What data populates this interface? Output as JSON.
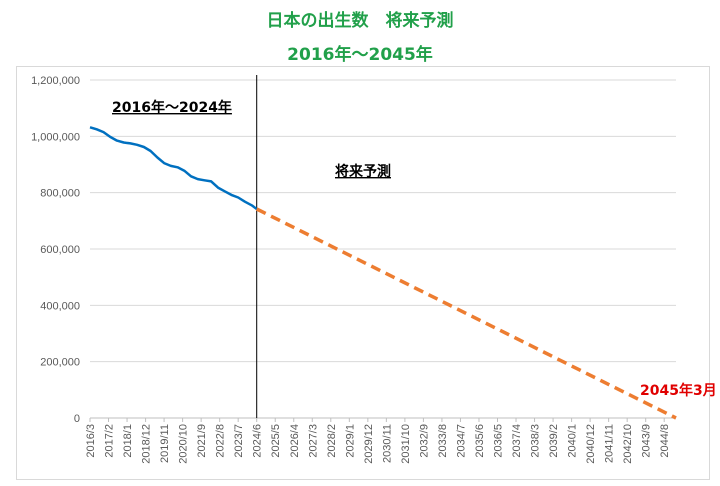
{
  "title": "日本の出生数　将来予測",
  "subtitle": "2016年～2045年",
  "annotations": {
    "actual_period": "2016年～2024年",
    "forecast_label": "将来予測",
    "end_label": "2045年3月"
  },
  "colors": {
    "title": "#21a04a",
    "actual": "#0070c0",
    "forecast": "#ed7d31",
    "end_label": "#e00000",
    "grid": "#d9d9d9"
  },
  "chart_data": {
    "type": "line",
    "title": "日本の出生数　将来予測",
    "subtitle": "2016年～2045年",
    "x_range": [
      "2016-03",
      "2045-03"
    ],
    "ylim": [
      0,
      1200000
    ],
    "y_ticks": [
      0,
      200000,
      400000,
      600000,
      800000,
      1000000,
      1200000
    ],
    "y_tick_labels": [
      "0",
      "200,000",
      "400,000",
      "600,000",
      "800,000",
      "1,000,000",
      "1,200,000"
    ],
    "x_tick_labels": [
      "2016/3",
      "2017/2",
      "2018/1",
      "2018/12",
      "2019/11",
      "2020/10",
      "2021/9",
      "2022/8",
      "2023/7",
      "2024/6",
      "2025/5",
      "2026/4",
      "2027/3",
      "2028/2",
      "2029/1",
      "2029/12",
      "2030/11",
      "2031/10",
      "2032/9",
      "2033/8",
      "2034/7",
      "2035/6",
      "2036/5",
      "2037/4",
      "2038/3",
      "2039/2",
      "2040/1",
      "2040/12",
      "2041/11",
      "2042/10",
      "2043/9",
      "2044/8"
    ],
    "grid": "horizontal",
    "legend": "none",
    "divider_at": "2024-06",
    "series": [
      {
        "style": "solid",
        "x": [
          "2016-03",
          "2016-07",
          "2016-11",
          "2017-03",
          "2017-07",
          "2017-11",
          "2018-03",
          "2018-07",
          "2018-11",
          "2019-03",
          "2019-07",
          "2019-11",
          "2020-03",
          "2020-07",
          "2020-11",
          "2021-03",
          "2021-07",
          "2021-11",
          "2022-03",
          "2022-07",
          "2022-11",
          "2023-03",
          "2023-07",
          "2023-11",
          "2024-03",
          "2024-06"
        ],
        "values": [
          1032000,
          1025000,
          1015000,
          998000,
          985000,
          978000,
          975000,
          970000,
          962000,
          948000,
          925000,
          905000,
          895000,
          890000,
          878000,
          858000,
          848000,
          844000,
          840000,
          818000,
          805000,
          792000,
          783000,
          768000,
          755000,
          742000
        ]
      },
      {
        "style": "dashed",
        "x": [
          "2024-06",
          "2045-03"
        ],
        "values": [
          742000,
          0
        ]
      }
    ]
  }
}
